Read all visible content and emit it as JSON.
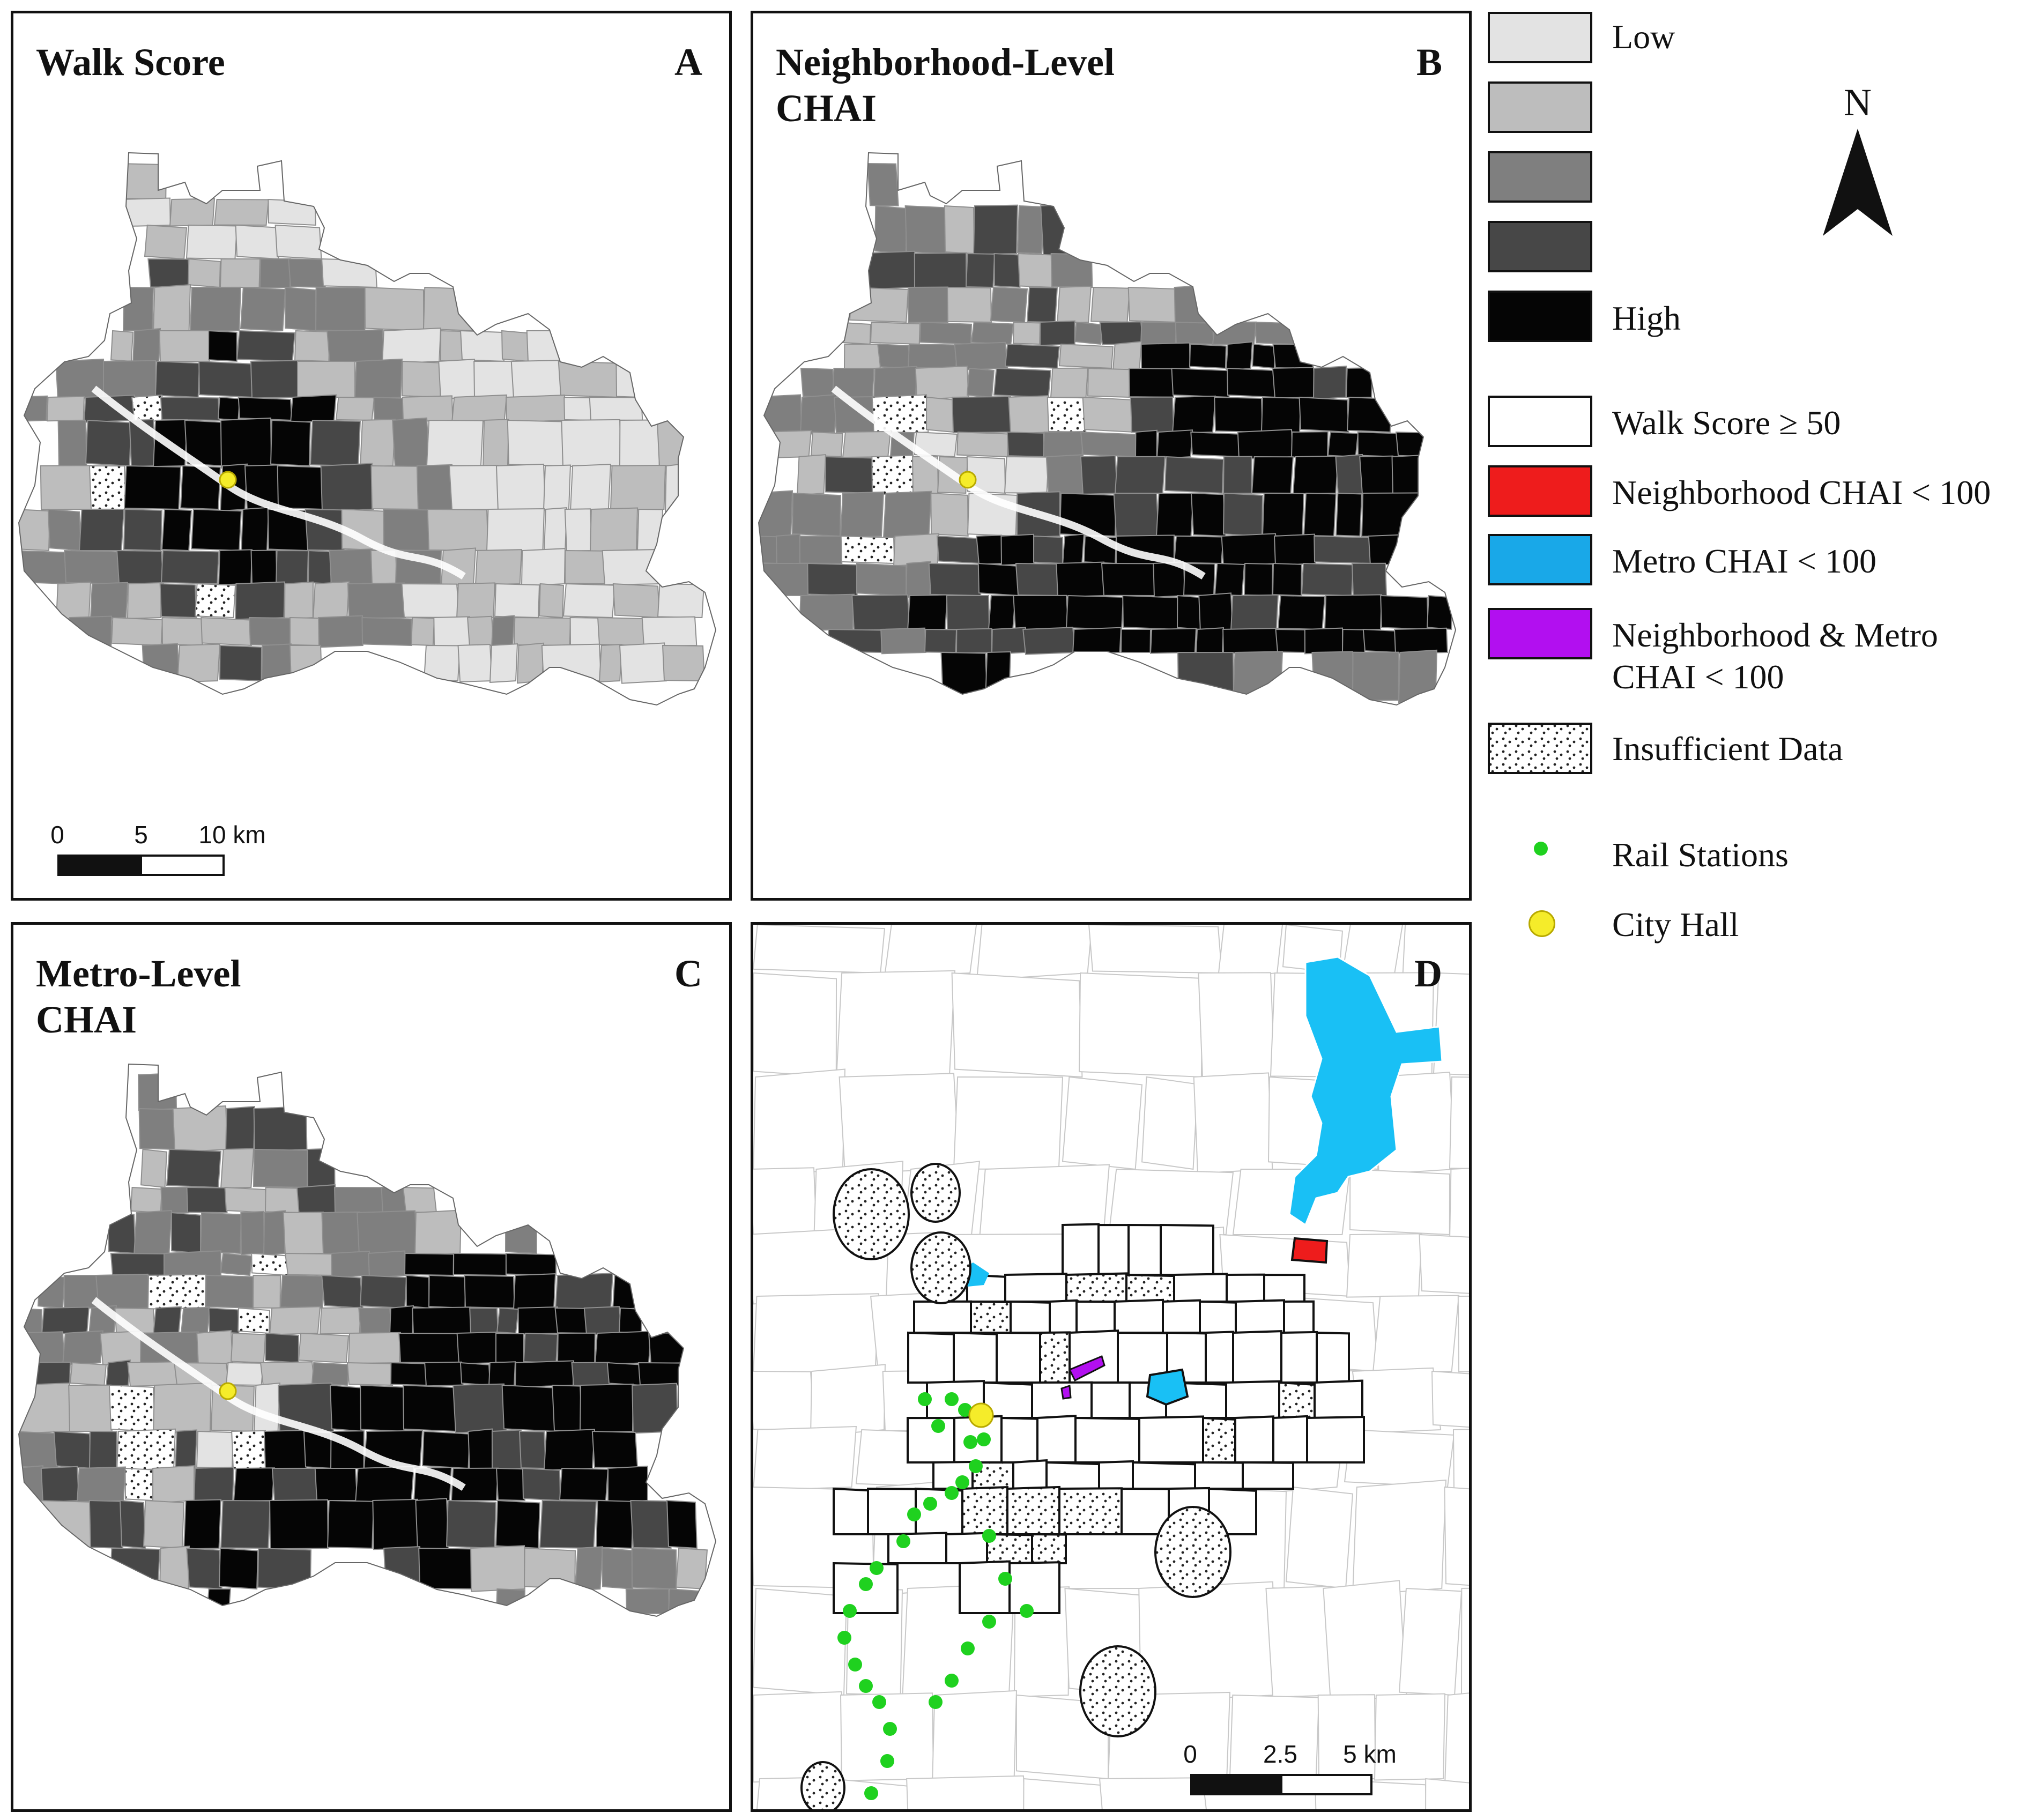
{
  "panels": [
    {
      "id": "A",
      "title": "Walk Score",
      "letter": "A"
    },
    {
      "id": "B",
      "title": "Neighborhood-Level\nCHAI",
      "letter": "B"
    },
    {
      "id": "C",
      "title": "Metro-Level\nCHAI",
      "letter": "C"
    },
    {
      "id": "D",
      "title": "",
      "letter": "D"
    }
  ],
  "scalebars": {
    "A": {
      "labels": [
        "0",
        "5",
        "10 km"
      ]
    },
    "D": {
      "labels": [
        "0",
        "2.5",
        "5 km"
      ]
    }
  },
  "legend": {
    "gradient": [
      {
        "label": "Low",
        "color": "#e3e3e3"
      },
      {
        "label": "",
        "color": "#bdbdbd"
      },
      {
        "label": "",
        "color": "#7f7f7f"
      },
      {
        "label": "",
        "color": "#474747"
      },
      {
        "label": "High",
        "color": "#050505"
      }
    ],
    "categories": [
      {
        "label": "Walk Score ≥ 50",
        "color": "#ffffff"
      },
      {
        "label": "Neighborhood CHAI < 100",
        "color": "#ee1c1c"
      },
      {
        "label": "Metro CHAI < 100",
        "color": "#19a8e8"
      },
      {
        "label": "Neighborhood & Metro\nCHAI < 100",
        "color": "#b20ff0"
      },
      {
        "label": "Insufficient Data",
        "color": "dots"
      }
    ],
    "points": [
      {
        "label": "Rail Stations",
        "color": "#1fd11f"
      },
      {
        "label": "City Hall",
        "color": "#f5ec2a"
      }
    ]
  },
  "north_arrow": {
    "label": "N"
  },
  "colors": {
    "tract_border": "#8f8f8f",
    "outline": "#111111",
    "ws50_outline": "#111111",
    "metro_blue": "#19c0f5",
    "red": "#ee1c1c",
    "purple": "#b20ff0",
    "rail": "#1fd11f",
    "city_hall": "#f5ec2a"
  }
}
